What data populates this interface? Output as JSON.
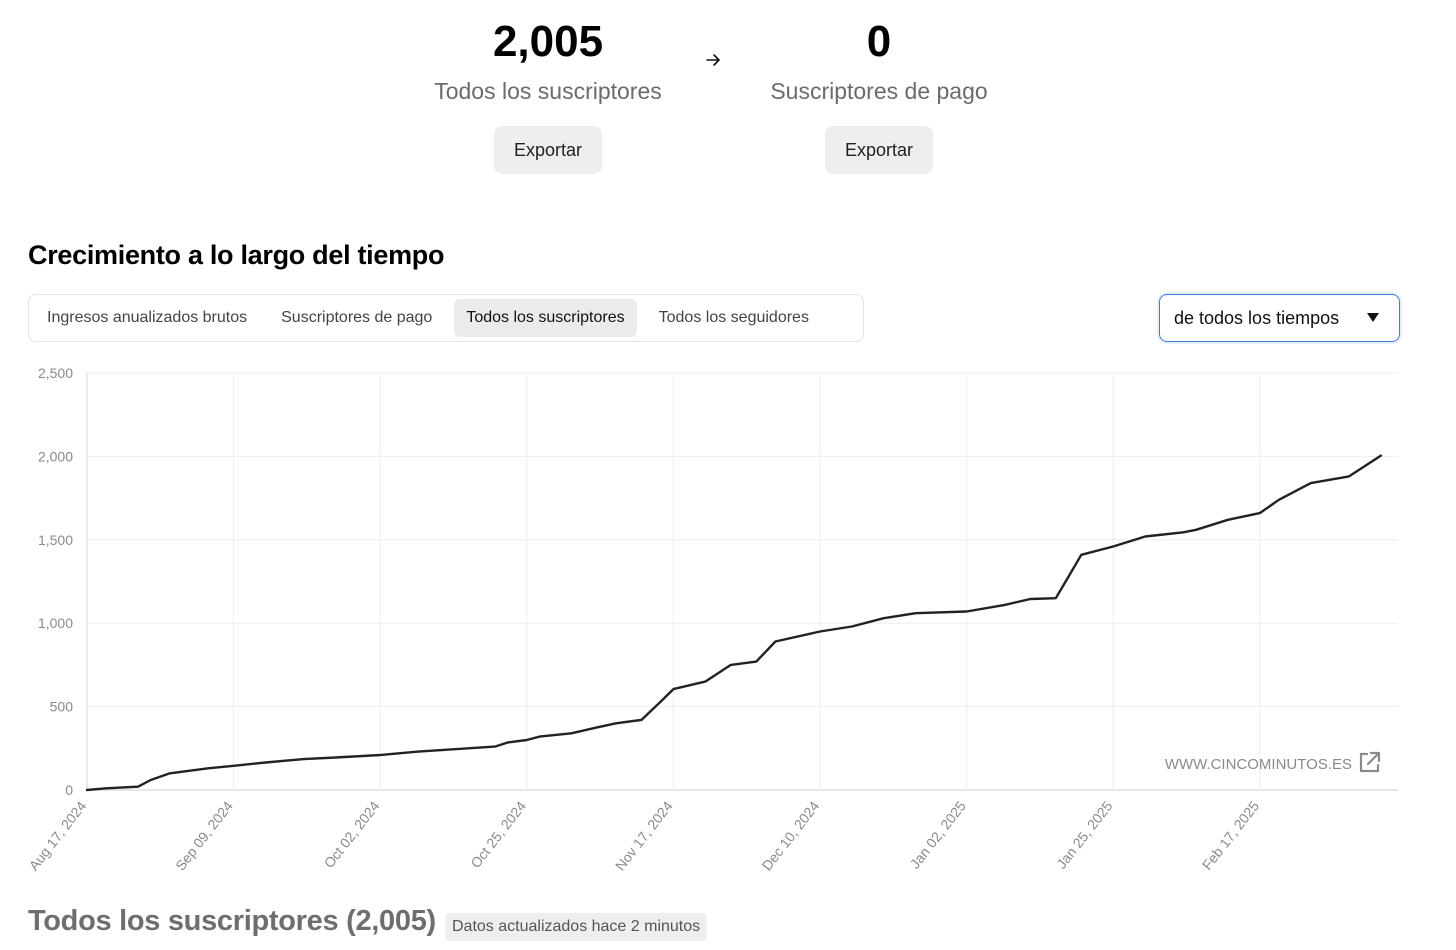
{
  "stats": {
    "all": {
      "value": "2,005",
      "label": "Todos los suscriptores",
      "export_label": "Exportar"
    },
    "paid": {
      "value": "0",
      "label": "Suscriptores de pago",
      "export_label": "Exportar"
    }
  },
  "section_title": "Crecimiento a lo largo del tiempo",
  "tabs": [
    {
      "label": "Ingresos anualizados brutos",
      "active": false
    },
    {
      "label": "Suscriptores de pago",
      "active": false
    },
    {
      "label": "Todos los suscriptores",
      "active": true
    },
    {
      "label": "Todos los seguidores",
      "active": false
    }
  ],
  "range_select": {
    "value": "de todos los tiempos"
  },
  "watermark": "WWW.CINCOMINUTOS.ES",
  "chart_data": {
    "type": "line",
    "x_tick_labels": [
      "Aug 17, 2024",
      "Sep 09, 2024",
      "Oct 02, 2024",
      "Oct 25, 2024",
      "Nov 17, 2024",
      "Dec 10, 2024",
      "Jan 02, 2025",
      "Jan 25, 2025",
      "Feb 17, 2025"
    ],
    "y_tick_labels": [
      "2,500",
      "2,000",
      "1,500",
      "1,000",
      "500",
      "0"
    ],
    "ylim": [
      0,
      2500
    ],
    "grid": true,
    "series": [
      {
        "x": [
          "2024-08-17",
          "2024-08-20",
          "2024-08-25",
          "2024-08-27",
          "2024-08-30",
          "2024-09-02",
          "2024-09-05",
          "2024-09-09",
          "2024-09-14",
          "2024-09-20",
          "2024-09-25",
          "2024-10-02",
          "2024-10-08",
          "2024-10-14",
          "2024-10-20",
          "2024-10-22",
          "2024-10-25",
          "2024-10-27",
          "2024-11-01",
          "2024-11-05",
          "2024-11-08",
          "2024-11-12",
          "2024-11-15",
          "2024-11-17",
          "2024-11-22",
          "2024-11-26",
          "2024-11-30",
          "2024-12-03",
          "2024-12-10",
          "2024-12-15",
          "2024-12-20",
          "2024-12-25",
          "2025-01-02",
          "2025-01-08",
          "2025-01-12",
          "2025-01-16",
          "2025-01-18",
          "2025-01-20",
          "2025-01-25",
          "2025-01-30",
          "2025-02-05",
          "2025-02-07",
          "2025-02-12",
          "2025-02-17",
          "2025-02-20",
          "2025-02-25",
          "2025-03-03",
          "2025-03-08"
        ],
        "y": [
          0,
          10,
          20,
          60,
          100,
          115,
          130,
          145,
          165,
          185,
          195,
          210,
          230,
          245,
          260,
          285,
          300,
          320,
          340,
          375,
          400,
          420,
          530,
          605,
          650,
          750,
          770,
          890,
          950,
          980,
          1030,
          1060,
          1070,
          1110,
          1145,
          1150,
          1280,
          1410,
          1460,
          1520,
          1545,
          1560,
          1620,
          1660,
          1740,
          1840,
          1880,
          2005
        ]
      }
    ]
  }
}
